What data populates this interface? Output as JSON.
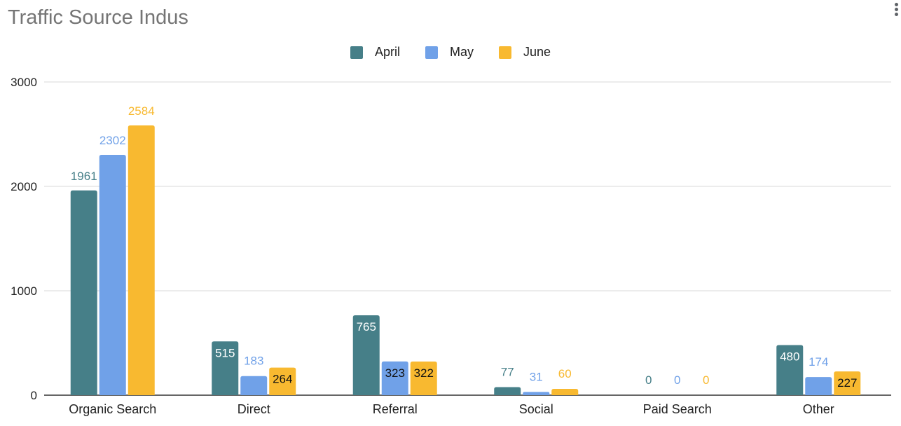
{
  "chart_data": {
    "type": "bar",
    "title": "Traffic Source Indus",
    "categories": [
      "Organic Search",
      "Direct",
      "Referral",
      "Social",
      "Paid Search",
      "Other"
    ],
    "series": [
      {
        "name": "April",
        "color": "#467F88",
        "values": [
          1961,
          515,
          765,
          77,
          0,
          480
        ]
      },
      {
        "name": "May",
        "color": "#70A1E8",
        "values": [
          2302,
          183,
          323,
          31,
          0,
          174
        ]
      },
      {
        "name": "June",
        "color": "#F8B930",
        "values": [
          2584,
          264,
          322,
          60,
          0,
          227
        ]
      }
    ],
    "ylim": [
      0,
      3000
    ],
    "yticks": [
      "0",
      "1000",
      "2000",
      "3000"
    ],
    "legend_position": "top-center",
    "grid": true,
    "data_labels": true
  },
  "menu_icon": "more-vert-icon"
}
